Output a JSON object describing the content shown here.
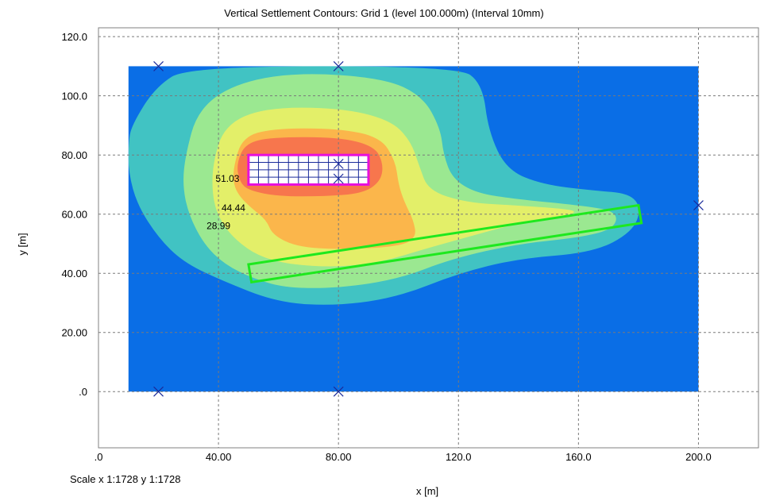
{
  "title": "Vertical Settlement Contours: Grid 1 (level 100.000m) (Interval 10mm)",
  "scale_text": "Scale x 1:1728  y 1:1728",
  "colors": {
    "band0": "#0a6ee6",
    "band1": "#41c3c3",
    "band2": "#9be891",
    "band3": "#e3ef69",
    "band4": "#fbb64b",
    "band5": "#f7764d",
    "foundation_grid": "#e80fdc",
    "strip_outline": "#1ee81e"
  },
  "chart_data": {
    "type": "contour",
    "title": "Vertical Settlement Contours: Grid 1 (level 100.000m) (Interval 10mm)",
    "xlabel": "x [m]",
    "ylabel": "y [m]",
    "xlim": [
      0,
      220
    ],
    "ylim": [
      -19,
      123
    ],
    "x_ticks": [
      ".0",
      "40.00",
      "80.00",
      "120.0",
      "160.0",
      "200.0"
    ],
    "x_tick_values": [
      0,
      40,
      80,
      120,
      160,
      200
    ],
    "y_ticks": [
      ".0",
      "20.00",
      "40.00",
      "60.00",
      "80.00",
      "100.0",
      "120.0"
    ],
    "y_tick_values": [
      0,
      20,
      40,
      60,
      80,
      100,
      120
    ],
    "grid": true,
    "grid_extent": {
      "x": [
        10,
        200
      ],
      "y": [
        0,
        110
      ]
    },
    "contour_labels": [
      {
        "text": "51.03",
        "x": 43,
        "y": 72
      },
      {
        "text": "44.44",
        "x": 45,
        "y": 62
      },
      {
        "text": "28.99",
        "x": 40,
        "y": 56
      }
    ],
    "loaded_rectangle": {
      "x": [
        50,
        90
      ],
      "y": [
        70,
        80
      ],
      "divisions": [
        12,
        4
      ]
    },
    "strip_polygon": [
      [
        50,
        43
      ],
      [
        180,
        63
      ],
      [
        181,
        57
      ],
      [
        51,
        37
      ]
    ],
    "markers": [
      {
        "x": 20,
        "y": 110
      },
      {
        "x": 80,
        "y": 110
      },
      {
        "x": 20,
        "y": 0
      },
      {
        "x": 80,
        "y": 0
      },
      {
        "x": 200,
        "y": 63
      },
      {
        "x": 80,
        "y": 77
      },
      {
        "x": 80,
        "y": 72
      }
    ],
    "bands": [
      {
        "level": 1,
        "polygon": [
          [
            11,
            90
          ],
          [
            19,
            103
          ],
          [
            30,
            110
          ],
          [
            120,
            110
          ],
          [
            128,
            104
          ],
          [
            130,
            88
          ],
          [
            136,
            75
          ],
          [
            148,
            70
          ],
          [
            165,
            68
          ],
          [
            177,
            67
          ],
          [
            181,
            62
          ],
          [
            178,
            54
          ],
          [
            165,
            47
          ],
          [
            140,
            45
          ],
          [
            120,
            40
          ],
          [
            100,
            32
          ],
          [
            80,
            29
          ],
          [
            60,
            30
          ],
          [
            40,
            38
          ],
          [
            28,
            44
          ],
          [
            20,
            52
          ],
          [
            13,
            63
          ],
          [
            10,
            74
          ],
          [
            10,
            84
          ]
        ]
      },
      {
        "level": 2,
        "polygon": [
          [
            29,
            80
          ],
          [
            33,
            95
          ],
          [
            45,
            104
          ],
          [
            66,
            108
          ],
          [
            95,
            106
          ],
          [
            108,
            100
          ],
          [
            114,
            89
          ],
          [
            115,
            80
          ],
          [
            118,
            72
          ],
          [
            126,
            67
          ],
          [
            140,
            65
          ],
          [
            160,
            63
          ],
          [
            173,
            61
          ],
          [
            172,
            55
          ],
          [
            160,
            52
          ],
          [
            140,
            50
          ],
          [
            118,
            45
          ],
          [
            100,
            38
          ],
          [
            80,
            35
          ],
          [
            63,
            35
          ],
          [
            52,
            38
          ],
          [
            42,
            43
          ],
          [
            35,
            50
          ],
          [
            30,
            60
          ],
          [
            28,
            70
          ]
        ]
      },
      {
        "level": 3,
        "polygon": [
          [
            38,
            77
          ],
          [
            42,
            90
          ],
          [
            55,
            96
          ],
          [
            80,
            96
          ],
          [
            97,
            92
          ],
          [
            104,
            85
          ],
          [
            107,
            76
          ],
          [
            110,
            68
          ],
          [
            122,
            64
          ],
          [
            138,
            63
          ],
          [
            153,
            62
          ],
          [
            160,
            61
          ],
          [
            155,
            59
          ],
          [
            140,
            57
          ],
          [
            122,
            52
          ],
          [
            108,
            48
          ],
          [
            95,
            44
          ],
          [
            80,
            42
          ],
          [
            63,
            43
          ],
          [
            53,
            46
          ],
          [
            46,
            51
          ],
          [
            41,
            57
          ],
          [
            38,
            65
          ]
        ]
      },
      {
        "level": 4,
        "polygon": [
          [
            45,
            76
          ],
          [
            48,
            86
          ],
          [
            58,
            89
          ],
          [
            80,
            89
          ],
          [
            94,
            86
          ],
          [
            99,
            78
          ],
          [
            100,
            70
          ],
          [
            102,
            64
          ],
          [
            105,
            58
          ],
          [
            106,
            52
          ],
          [
            100,
            49
          ],
          [
            80,
            48
          ],
          [
            66,
            49
          ],
          [
            58,
            53
          ],
          [
            56,
            58
          ],
          [
            51,
            62
          ],
          [
            47,
            66
          ],
          [
            45,
            70
          ]
        ]
      },
      {
        "level": 5,
        "polygon": [
          [
            46,
            77
          ],
          [
            49,
            84
          ],
          [
            58,
            86
          ],
          [
            80,
            86
          ],
          [
            92,
            83
          ],
          [
            95,
            77
          ],
          [
            94,
            71
          ],
          [
            88,
            67
          ],
          [
            75,
            66
          ],
          [
            60,
            66
          ],
          [
            50,
            68
          ],
          [
            47,
            71
          ]
        ]
      }
    ]
  }
}
